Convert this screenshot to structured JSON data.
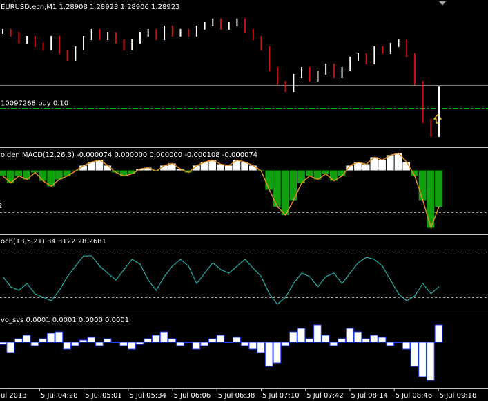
{
  "chart_data": [
    {
      "type": "price_bars",
      "title": "EURUSD.ecn,M1  1.28908 1.28923 1.28906 1.28923",
      "up_color": "#ffffff",
      "down_color": "#d01010",
      "ylim": [
        1.285,
        1.295
      ],
      "level_lines": [
        {
          "value": 1.2895,
          "color": "#808080",
          "style": "solid"
        },
        {
          "value": 1.28783,
          "color": "#00c000",
          "style": "dashdot",
          "label": "10097268 buy 0.10"
        }
      ],
      "values": [
        1.29344,
        1.29319,
        1.29268,
        1.29293,
        1.29243,
        1.29217,
        1.29293,
        1.29192,
        1.29142,
        1.29217,
        1.29293,
        1.29344,
        1.29293,
        1.29319,
        1.29268,
        1.29217,
        1.29268,
        1.29319,
        1.29344,
        1.29293,
        1.29369,
        1.29319,
        1.29344,
        1.29319,
        1.29369,
        1.29394,
        1.2942,
        1.29369,
        1.29394,
        1.2942,
        1.29344,
        1.29293,
        1.29217,
        1.29066,
        1.28965,
        1.28914,
        1.29015,
        1.29066,
        1.2899,
        1.29041,
        1.29091,
        1.29015,
        1.29066,
        1.29142,
        1.29167,
        1.29116,
        1.29217,
        1.29192,
        1.29243,
        1.29268,
        1.29167,
        1.28965,
        1.28687,
        1.28586,
        1.28923
      ]
    },
    {
      "type": "bar",
      "title": "olden MACD(12,26,3) -0.000074 0.000000 0.000000 -0.000108 -0.000074",
      "edge_label": "2",
      "pos_color": "#ffffff",
      "neg_color": "#10a010",
      "line_color": "#e09020",
      "ylim": [
        -0.00061,
        0.00019
      ],
      "level_lines": [
        {
          "value": -0.0004,
          "color": "#a0a0a0",
          "style": "dotted"
        }
      ],
      "values": [
        -5.3e-05,
        -0.00012,
        -5.3e-05,
        -8.7e-05,
        -2e-05,
        -0.0001,
        -0.000153,
        -8.7e-05,
        -5.3e-05,
        -7e-06,
        4.7e-05,
        8e-05,
        0.0001,
        4.7e-05,
        -2e-05,
        -5.3e-05,
        -3.3e-05,
        1.3e-05,
        2.7e-05,
        -7e-06,
        4.7e-05,
        6.7e-05,
        1.3e-05,
        -2e-05,
        4.7e-05,
        8e-05,
        0.0001,
        6e-05,
        4.7e-05,
        0.0001,
        8e-05,
        4.7e-05,
        -7e-06,
        -0.000187,
        -0.00035,
        -0.00043,
        -0.000287,
        -0.00012,
        -5.3e-05,
        -8.7e-05,
        -3.3e-05,
        -0.0001,
        -5.3e-05,
        4.7e-05,
        8e-05,
        6e-05,
        0.000127,
        0.0001,
        0.000147,
        0.000167,
        8e-05,
        -5.3e-05,
        -0.000287,
        -0.000553,
        -0.00035
      ]
    },
    {
      "type": "line",
      "title": "och(13,5,21) 34.3122 28.2681",
      "color": "#20b2aa",
      "ylim": [
        0,
        100
      ],
      "level_lines": [
        {
          "value": 80,
          "color": "#a0a0a0",
          "style": "dotted"
        },
        {
          "value": 20,
          "color": "#a0a0a0",
          "style": "dotted"
        }
      ],
      "values": [
        47.3,
        33.6,
        29.1,
        38.2,
        24.5,
        20,
        15.5,
        29.1,
        47.3,
        60.9,
        74.5,
        74.5,
        60.9,
        51.8,
        42.7,
        56.4,
        70,
        63.6,
        42.7,
        29.1,
        47.3,
        60.9,
        70,
        60.9,
        38.2,
        51.8,
        65.5,
        56.4,
        51.8,
        60.9,
        70,
        58.2,
        47.3,
        24.5,
        10.9,
        20,
        38.2,
        51.8,
        47.3,
        33.6,
        47.3,
        51.8,
        38.2,
        51.8,
        65.5,
        72.7,
        70,
        60.9,
        42.7,
        24.5,
        15.5,
        21.8,
        38.2,
        24.5,
        34.3122
      ]
    },
    {
      "type": "bar",
      "title": "vo_svs 0.0001 0.0001 0.0000 0.0001",
      "pos_color": "#ffffff",
      "neg_color": "#ffffff",
      "tip_color": "#2040ff",
      "ylim": [
        -0.000315,
        0.000185
      ],
      "values": [
        -1.5e-05,
        -7.5e-05,
        2.5e-05,
        5e-05,
        -2.5e-05,
        2.5e-05,
        6.5e-05,
        7.5e-05,
        -5e-05,
        -2.5e-05,
        1.5e-05,
        3.5e-05,
        -2.5e-05,
        2.5e-05,
        0,
        -2.5e-05,
        -5e-05,
        -1.5e-05,
        2.5e-05,
        5e-05,
        7.5e-05,
        2.5e-05,
        -2.5e-05,
        0,
        -5e-05,
        -2.5e-05,
        2.5e-05,
        5e-05,
        0,
        3.5e-05,
        -2.5e-05,
        -5e-05,
        -7.5e-05,
        -0.000175,
        -0.00015,
        -2.5e-05,
        7.5e-05,
        0.0001,
        2.5e-05,
        0.000125,
        5e-05,
        -2.5e-05,
        2.5e-05,
        0.0001,
        7.5e-05,
        2.5e-05,
        5e-05,
        3.5e-05,
        -2.5e-05,
        0,
        -5e-05,
        -0.000175,
        -0.00025,
        -0.000275,
        0.000125
      ]
    }
  ],
  "time_axis": [
    "ul 2013",
    "5 Jul 04:28",
    "5 Jul 05:01",
    "5 Jul 05:34",
    "5 Jul 06:06",
    "5 Jul 06:38",
    "5 Jul 07:10",
    "5 Jul 07:42",
    "5 Jul 08:14",
    "5 Jul 08:46",
    "5 Jul 09:18"
  ]
}
